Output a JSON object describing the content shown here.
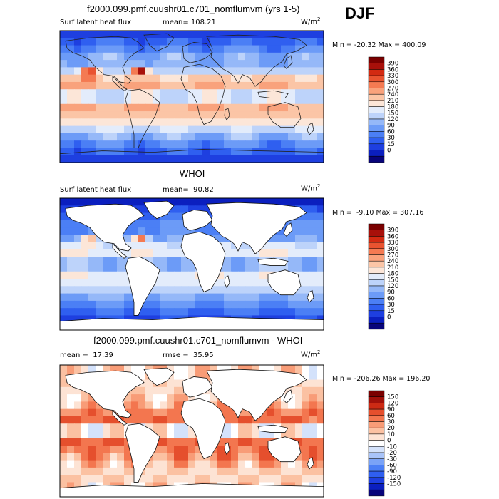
{
  "season": "DJF",
  "colors": {
    "model": [
      "#08047a",
      "#0b1fbf",
      "#1e3fe0",
      "#2f5ff0",
      "#4b7ff5",
      "#6c9bf7",
      "#95b8f8",
      "#bdd3fa",
      "#e3ecfb",
      "#fce6d8",
      "#fbc5a6",
      "#f9a27c",
      "#f47a52",
      "#e95330",
      "#d32a12",
      "#a8100a",
      "#7a0000"
    ],
    "diff": [
      "#08047a",
      "#0b1fbf",
      "#1e3fe0",
      "#2f5ff0",
      "#4b7ff5",
      "#7aa3f7",
      "#a9c4f9",
      "#d4e2fb",
      "#ffffff",
      "#fde3d4",
      "#fbc1a2",
      "#f89c77",
      "#f3764f",
      "#e54f2d",
      "#cc2a14",
      "#a0100a",
      "#7a0000"
    ]
  },
  "panels": [
    {
      "title": "f2000.099.pmf.cuushr01.c701_nomflumvm (yrs 1-5)",
      "subtitle_left": "Surf latent heat flux",
      "subtitle_right": "mean= 108.21",
      "units": "W/m",
      "units_sup": "2",
      "min_max": "Min = -20.32 Max = 400.09",
      "colorbar_labels": [
        "390",
        "360",
        "330",
        "300",
        "270",
        "240",
        "210",
        "180",
        "150",
        "120",
        "90",
        "60",
        "30",
        "15",
        "0"
      ]
    },
    {
      "title": "WHOI",
      "subtitle_left": "Surf latent heat flux",
      "subtitle_right": "mean=  90.82",
      "units": "W/m",
      "units_sup": "2",
      "min_max": "Min =  -9.10 Max = 307.16",
      "colorbar_labels": [
        "390",
        "360",
        "330",
        "300",
        "270",
        "240",
        "210",
        "180",
        "150",
        "120",
        "90",
        "60",
        "30",
        "15",
        "0"
      ]
    },
    {
      "title": "f2000.099.pmf.cuushr01.c701_nomflumvm - WHOI",
      "subtitle_left": "mean =  17.39",
      "subtitle_right": "rmse =  35.95",
      "units": "W/m",
      "units_sup": "2",
      "min_max": "Min = -206.26 Max = 196.20",
      "colorbar_labels": [
        "150",
        "120",
        "90",
        "60",
        "30",
        "20",
        "10",
        "0",
        "-10",
        "-20",
        "-30",
        "-60",
        "-90",
        "-120",
        "-150"
      ]
    }
  ],
  "chart_data": [
    {
      "type": "heatmap",
      "title": "f2000.099.pmf.cuushr01.c701_nomflumvm (yrs 1-5)",
      "variable": "Surf latent heat flux",
      "units": "W/m2",
      "mean": 108.21,
      "min": -20.32,
      "max": 400.09,
      "levels": [
        0,
        15,
        30,
        60,
        90,
        120,
        150,
        180,
        210,
        240,
        270,
        300,
        330,
        360,
        390
      ]
    },
    {
      "type": "heatmap",
      "title": "WHOI",
      "variable": "Surf latent heat flux",
      "units": "W/m2",
      "mean": 90.82,
      "min": -9.1,
      "max": 307.16,
      "levels": [
        0,
        15,
        30,
        60,
        90,
        120,
        150,
        180,
        210,
        240,
        270,
        300,
        330,
        360,
        390
      ]
    },
    {
      "type": "heatmap",
      "title": "f2000.099.pmf.cuushr01.c701_nomflumvm - WHOI",
      "units": "W/m2",
      "mean": 17.39,
      "rmse": 35.95,
      "min": -206.26,
      "max": 196.2,
      "levels": [
        -150,
        -120,
        -90,
        -60,
        -30,
        -20,
        -10,
        0,
        10,
        20,
        30,
        60,
        90,
        120,
        150
      ]
    }
  ]
}
